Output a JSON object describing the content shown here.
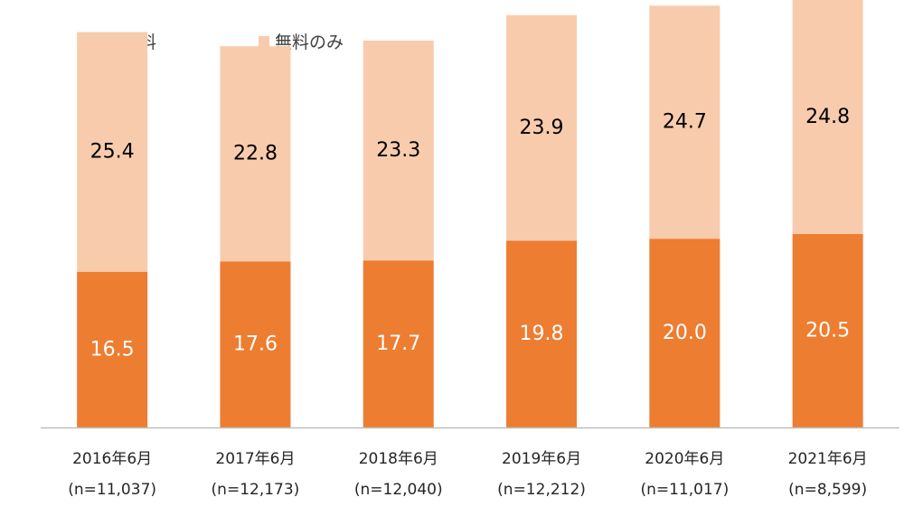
{
  "chart_data": {
    "type": "bar",
    "stacked": true,
    "categories": [
      "2016年6月",
      "2017年6月",
      "2018年6月",
      "2019年6月",
      "2020年6月",
      "2021年6月"
    ],
    "sample_sizes": [
      "(n=11,037)",
      "(n=12,173)",
      "(n=12,040)",
      "(n=12,212)",
      "(n=11,017)",
      "(n=8,599)"
    ],
    "series": [
      {
        "name": "有料",
        "values": [
          16.5,
          17.6,
          17.7,
          19.8,
          20.0,
          20.5
        ],
        "color": "#ED7D31",
        "label_color": "#ffffff"
      },
      {
        "name": "無料のみ",
        "values": [
          25.4,
          22.8,
          23.3,
          23.9,
          24.7,
          24.8
        ],
        "color": "#F8CBAD",
        "label_color": "#000000"
      }
    ],
    "ylim": [
      0,
      45.3
    ],
    "grid": false,
    "legend_position": "top-left",
    "axis_line_color": "#BFBFBF"
  }
}
